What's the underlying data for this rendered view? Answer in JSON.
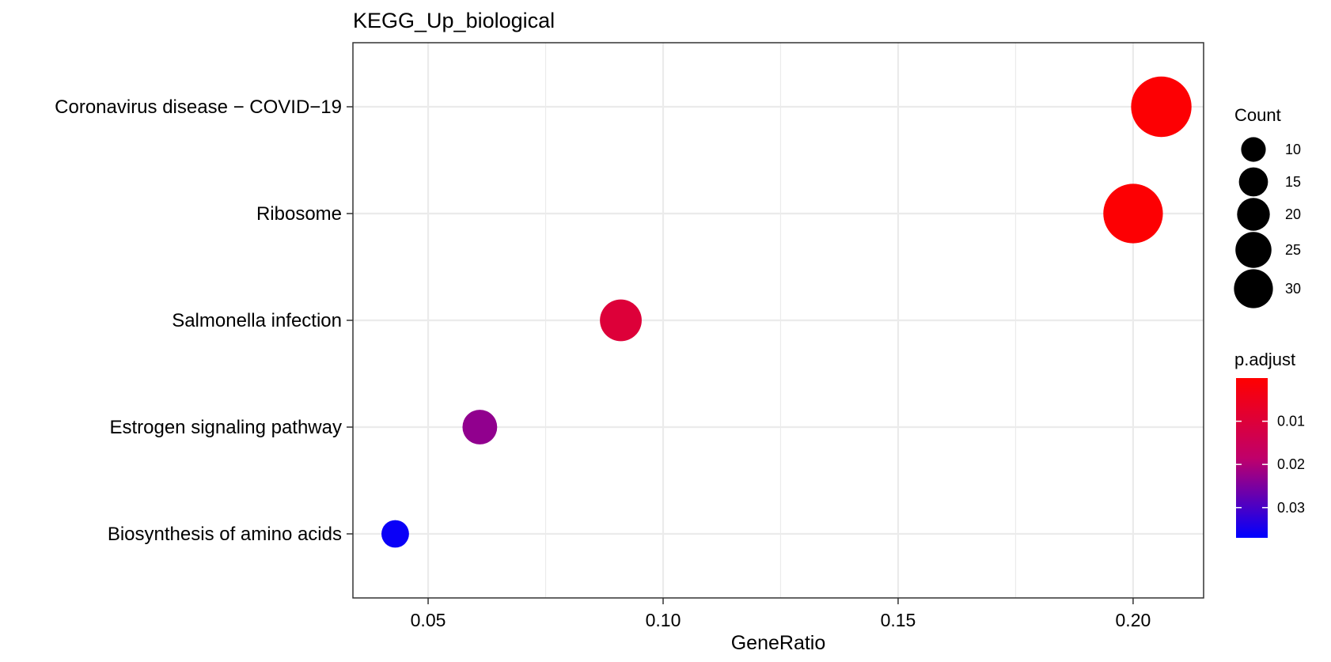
{
  "chart_data": {
    "type": "scatter",
    "title": "KEGG_Up_biological",
    "xlabel": "GeneRatio",
    "ylabel": "",
    "xlim": [
      0.034,
      0.215
    ],
    "x_ticks": [
      0.05,
      0.1,
      0.15,
      0.2
    ],
    "x_tick_labels": [
      "0.05",
      "0.10",
      "0.15",
      "0.20"
    ],
    "grid": true,
    "categories": [
      "Coronavirus disease − COVID−19",
      "Ribosome",
      "Salmonella infection",
      "Estrogen signaling pathway",
      "Biosynthesis of amino acids"
    ],
    "points": [
      {
        "category": "Coronavirus disease − COVID−19",
        "gene_ratio": 0.206,
        "count": 33,
        "p_adjust": 0.0005
      },
      {
        "category": "Ribosome",
        "gene_ratio": 0.2,
        "count": 32,
        "p_adjust": 0.0005
      },
      {
        "category": "Salmonella infection",
        "gene_ratio": 0.091,
        "count": 15,
        "p_adjust": 0.01
      },
      {
        "category": "Estrogen signaling pathway",
        "gene_ratio": 0.061,
        "count": 10,
        "p_adjust": 0.023
      },
      {
        "category": "Biosynthesis of amino acids",
        "gene_ratio": 0.043,
        "count": 6,
        "p_adjust": 0.036
      }
    ],
    "size_legend": {
      "title": "Count",
      "values": [
        10,
        15,
        20,
        25,
        30
      ],
      "labels": [
        "10",
        "15",
        "20",
        "25",
        "30"
      ]
    },
    "color_legend": {
      "title": "p.adjust",
      "range": [
        0.0,
        0.037
      ],
      "ticks": [
        0.01,
        0.02,
        0.03
      ],
      "tick_labels": [
        "0.01",
        "0.02",
        "0.03"
      ],
      "low_color": "#ff0000",
      "high_color": "#0000ff"
    },
    "legend_position": "right"
  },
  "colors": {
    "grid": "#ebebeb",
    "axis": "#333333",
    "background": "#ffffff"
  }
}
